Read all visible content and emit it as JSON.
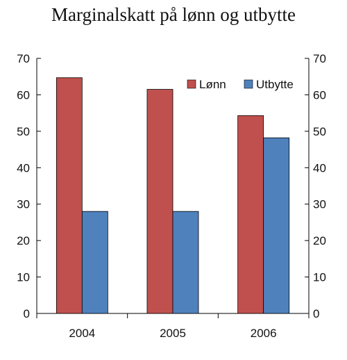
{
  "chart_data": {
    "type": "bar",
    "title": "Marginalskatt på lønn og utbytte",
    "categories": [
      "2004",
      "2005",
      "2006"
    ],
    "series": [
      {
        "name": "Lønn",
        "color": "#c0504d",
        "values": [
          64.7,
          61.5,
          54.3
        ]
      },
      {
        "name": "Utbytte",
        "color": "#4f81bd",
        "values": [
          28,
          28,
          48.2
        ]
      }
    ],
    "ylim": [
      0,
      70
    ],
    "yticks": [
      0,
      10,
      20,
      30,
      40,
      50,
      60,
      70
    ],
    "right_axis": true,
    "grid": false,
    "legend_position": "top-right"
  }
}
